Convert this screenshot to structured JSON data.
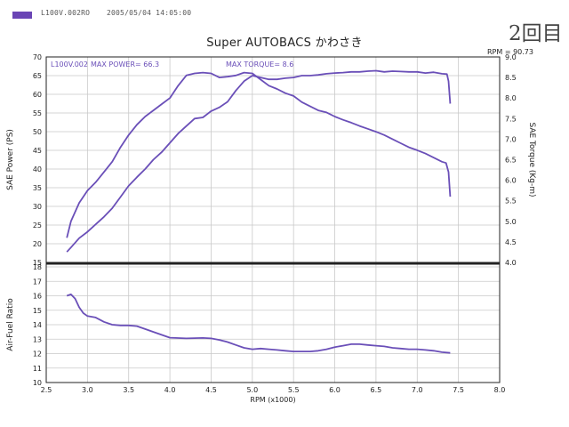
{
  "header": {
    "file_id": "L100V.002RO",
    "datetime": "2005/05/04 14:05:00",
    "swatch_color": "#6a45b5"
  },
  "title": "Super AUTOBACS かわさき",
  "handwritten_note": "2回目",
  "rpm_max_label": "RPM = 90.73",
  "colors": {
    "curve": "#6a4fb8",
    "grid": "#c9c9c9",
    "axis": "#222222"
  },
  "chart_data": [
    {
      "type": "line",
      "panel": "power-torque",
      "grid": true,
      "xlabel": "RPM (x1000)",
      "xlim": [
        2.5,
        8.0
      ],
      "x_ticks": [
        "2.5",
        "3.0",
        "3.5",
        "4.0",
        "4.5",
        "5.0",
        "5.5",
        "6.0",
        "6.5",
        "7.0",
        "7.5",
        "8.0"
      ],
      "ylabel": "SAE Power (PS)",
      "ylim": [
        15,
        70
      ],
      "y_ticks": [
        "15",
        "20",
        "25",
        "30",
        "35",
        "40",
        "45",
        "50",
        "55",
        "60",
        "65",
        "70"
      ],
      "y2label": "SAE Torque (Kg-m)",
      "y2lim": [
        4.0,
        9.0
      ],
      "y2_ticks": [
        "4.0",
        "4.5",
        "5.0",
        "5.5",
        "6.0",
        "6.5",
        "7.0",
        "7.5",
        "8.0",
        "8.5",
        "9.0"
      ],
      "annotations": {
        "run_id": "L100V.002",
        "max_power": "MAX POWER= 66.3",
        "max_torque": "MAX TORQUE= 8.6"
      },
      "series": [
        {
          "axis": "left",
          "points": [
            [
              2.75,
              17.8
            ],
            [
              2.8,
              19
            ],
            [
              2.9,
              21.5
            ],
            [
              3.0,
              23.2
            ],
            [
              3.1,
              25.2
            ],
            [
              3.2,
              27.2
            ],
            [
              3.3,
              29.5
            ],
            [
              3.4,
              32.5
            ],
            [
              3.5,
              35.5
            ],
            [
              3.6,
              37.8
            ],
            [
              3.7,
              40
            ],
            [
              3.8,
              42.5
            ],
            [
              3.9,
              44.5
            ],
            [
              4.0,
              47
            ],
            [
              4.1,
              49.5
            ],
            [
              4.2,
              51.5
            ],
            [
              4.3,
              53.5
            ],
            [
              4.4,
              53.8
            ],
            [
              4.5,
              55.5
            ],
            [
              4.6,
              56.5
            ],
            [
              4.7,
              58
            ],
            [
              4.8,
              61
            ],
            [
              4.9,
              63.5
            ],
            [
              5.0,
              65
            ],
            [
              5.1,
              64.5
            ],
            [
              5.2,
              64
            ],
            [
              5.3,
              64
            ],
            [
              5.4,
              64.3
            ],
            [
              5.5,
              64.5
            ],
            [
              5.6,
              65
            ],
            [
              5.7,
              65
            ],
            [
              5.8,
              65.2
            ],
            [
              5.9,
              65.5
            ],
            [
              6.0,
              65.7
            ],
            [
              6.1,
              65.8
            ],
            [
              6.2,
              66
            ],
            [
              6.3,
              66
            ],
            [
              6.4,
              66.2
            ],
            [
              6.5,
              66.3
            ],
            [
              6.6,
              66
            ],
            [
              6.7,
              66.2
            ],
            [
              6.8,
              66.1
            ],
            [
              6.9,
              66
            ],
            [
              7.0,
              66
            ],
            [
              7.1,
              65.7
            ],
            [
              7.2,
              65.9
            ],
            [
              7.3,
              65.5
            ],
            [
              7.36,
              65.4
            ],
            [
              7.38,
              63.5
            ],
            [
              7.4,
              57.5
            ]
          ]
        },
        {
          "axis": "right",
          "points": [
            [
              2.75,
              4.6
            ],
            [
              2.8,
              5.0
            ],
            [
              2.9,
              5.45
            ],
            [
              3.0,
              5.75
            ],
            [
              3.1,
              5.95
            ],
            [
              3.2,
              6.2
            ],
            [
              3.3,
              6.45
            ],
            [
              3.4,
              6.8
            ],
            [
              3.5,
              7.1
            ],
            [
              3.6,
              7.35
            ],
            [
              3.7,
              7.55
            ],
            [
              3.8,
              7.7
            ],
            [
              3.9,
              7.85
            ],
            [
              4.0,
              8.0
            ],
            [
              4.1,
              8.3
            ],
            [
              4.2,
              8.55
            ],
            [
              4.3,
              8.6
            ],
            [
              4.4,
              8.62
            ],
            [
              4.5,
              8.6
            ],
            [
              4.6,
              8.5
            ],
            [
              4.7,
              8.52
            ],
            [
              4.8,
              8.55
            ],
            [
              4.9,
              8.62
            ],
            [
              5.0,
              8.6
            ],
            [
              5.1,
              8.45
            ],
            [
              5.2,
              8.3
            ],
            [
              5.3,
              8.22
            ],
            [
              5.4,
              8.12
            ],
            [
              5.5,
              8.05
            ],
            [
              5.6,
              7.9
            ],
            [
              5.7,
              7.8
            ],
            [
              5.8,
              7.7
            ],
            [
              5.9,
              7.65
            ],
            [
              6.0,
              7.55
            ],
            [
              6.1,
              7.47
            ],
            [
              6.2,
              7.4
            ],
            [
              6.3,
              7.32
            ],
            [
              6.4,
              7.25
            ],
            [
              6.5,
              7.18
            ],
            [
              6.6,
              7.1
            ],
            [
              6.7,
              7.0
            ],
            [
              6.8,
              6.9
            ],
            [
              6.9,
              6.8
            ],
            [
              7.0,
              6.73
            ],
            [
              7.1,
              6.65
            ],
            [
              7.2,
              6.55
            ],
            [
              7.3,
              6.45
            ],
            [
              7.35,
              6.42
            ],
            [
              7.38,
              6.2
            ],
            [
              7.4,
              5.6
            ]
          ]
        }
      ]
    },
    {
      "type": "line",
      "panel": "air-fuel",
      "grid": true,
      "xlabel": "RPM (x1000)",
      "xlim": [
        2.5,
        8.0
      ],
      "ylabel": "Air-Fuel Ratio",
      "ylim": [
        10,
        18
      ],
      "y_ticks": [
        "10",
        "11",
        "12",
        "13",
        "14",
        "15",
        "16",
        "17",
        "18"
      ],
      "series": [
        {
          "axis": "left",
          "points": [
            [
              2.75,
              16
            ],
            [
              2.8,
              16.1
            ],
            [
              2.85,
              15.8
            ],
            [
              2.9,
              15.2
            ],
            [
              2.95,
              14.8
            ],
            [
              3.0,
              14.6
            ],
            [
              3.1,
              14.5
            ],
            [
              3.2,
              14.2
            ],
            [
              3.3,
              14.0
            ],
            [
              3.4,
              13.95
            ],
            [
              3.5,
              13.95
            ],
            [
              3.6,
              13.9
            ],
            [
              3.7,
              13.7
            ],
            [
              3.8,
              13.5
            ],
            [
              3.9,
              13.3
            ],
            [
              4.0,
              13.1
            ],
            [
              4.2,
              13.05
            ],
            [
              4.4,
              13.08
            ],
            [
              4.5,
              13.05
            ],
            [
              4.6,
              12.95
            ],
            [
              4.7,
              12.8
            ],
            [
              4.8,
              12.6
            ],
            [
              4.9,
              12.4
            ],
            [
              5.0,
              12.3
            ],
            [
              5.1,
              12.35
            ],
            [
              5.2,
              12.3
            ],
            [
              5.3,
              12.25
            ],
            [
              5.4,
              12.2
            ],
            [
              5.5,
              12.15
            ],
            [
              5.6,
              12.15
            ],
            [
              5.7,
              12.15
            ],
            [
              5.8,
              12.2
            ],
            [
              5.9,
              12.3
            ],
            [
              6.0,
              12.45
            ],
            [
              6.1,
              12.55
            ],
            [
              6.2,
              12.65
            ],
            [
              6.3,
              12.65
            ],
            [
              6.4,
              12.6
            ],
            [
              6.5,
              12.55
            ],
            [
              6.6,
              12.5
            ],
            [
              6.7,
              12.4
            ],
            [
              6.8,
              12.35
            ],
            [
              6.9,
              12.3
            ],
            [
              7.0,
              12.3
            ],
            [
              7.1,
              12.25
            ],
            [
              7.2,
              12.2
            ],
            [
              7.3,
              12.1
            ],
            [
              7.4,
              12.05
            ]
          ]
        }
      ]
    }
  ]
}
